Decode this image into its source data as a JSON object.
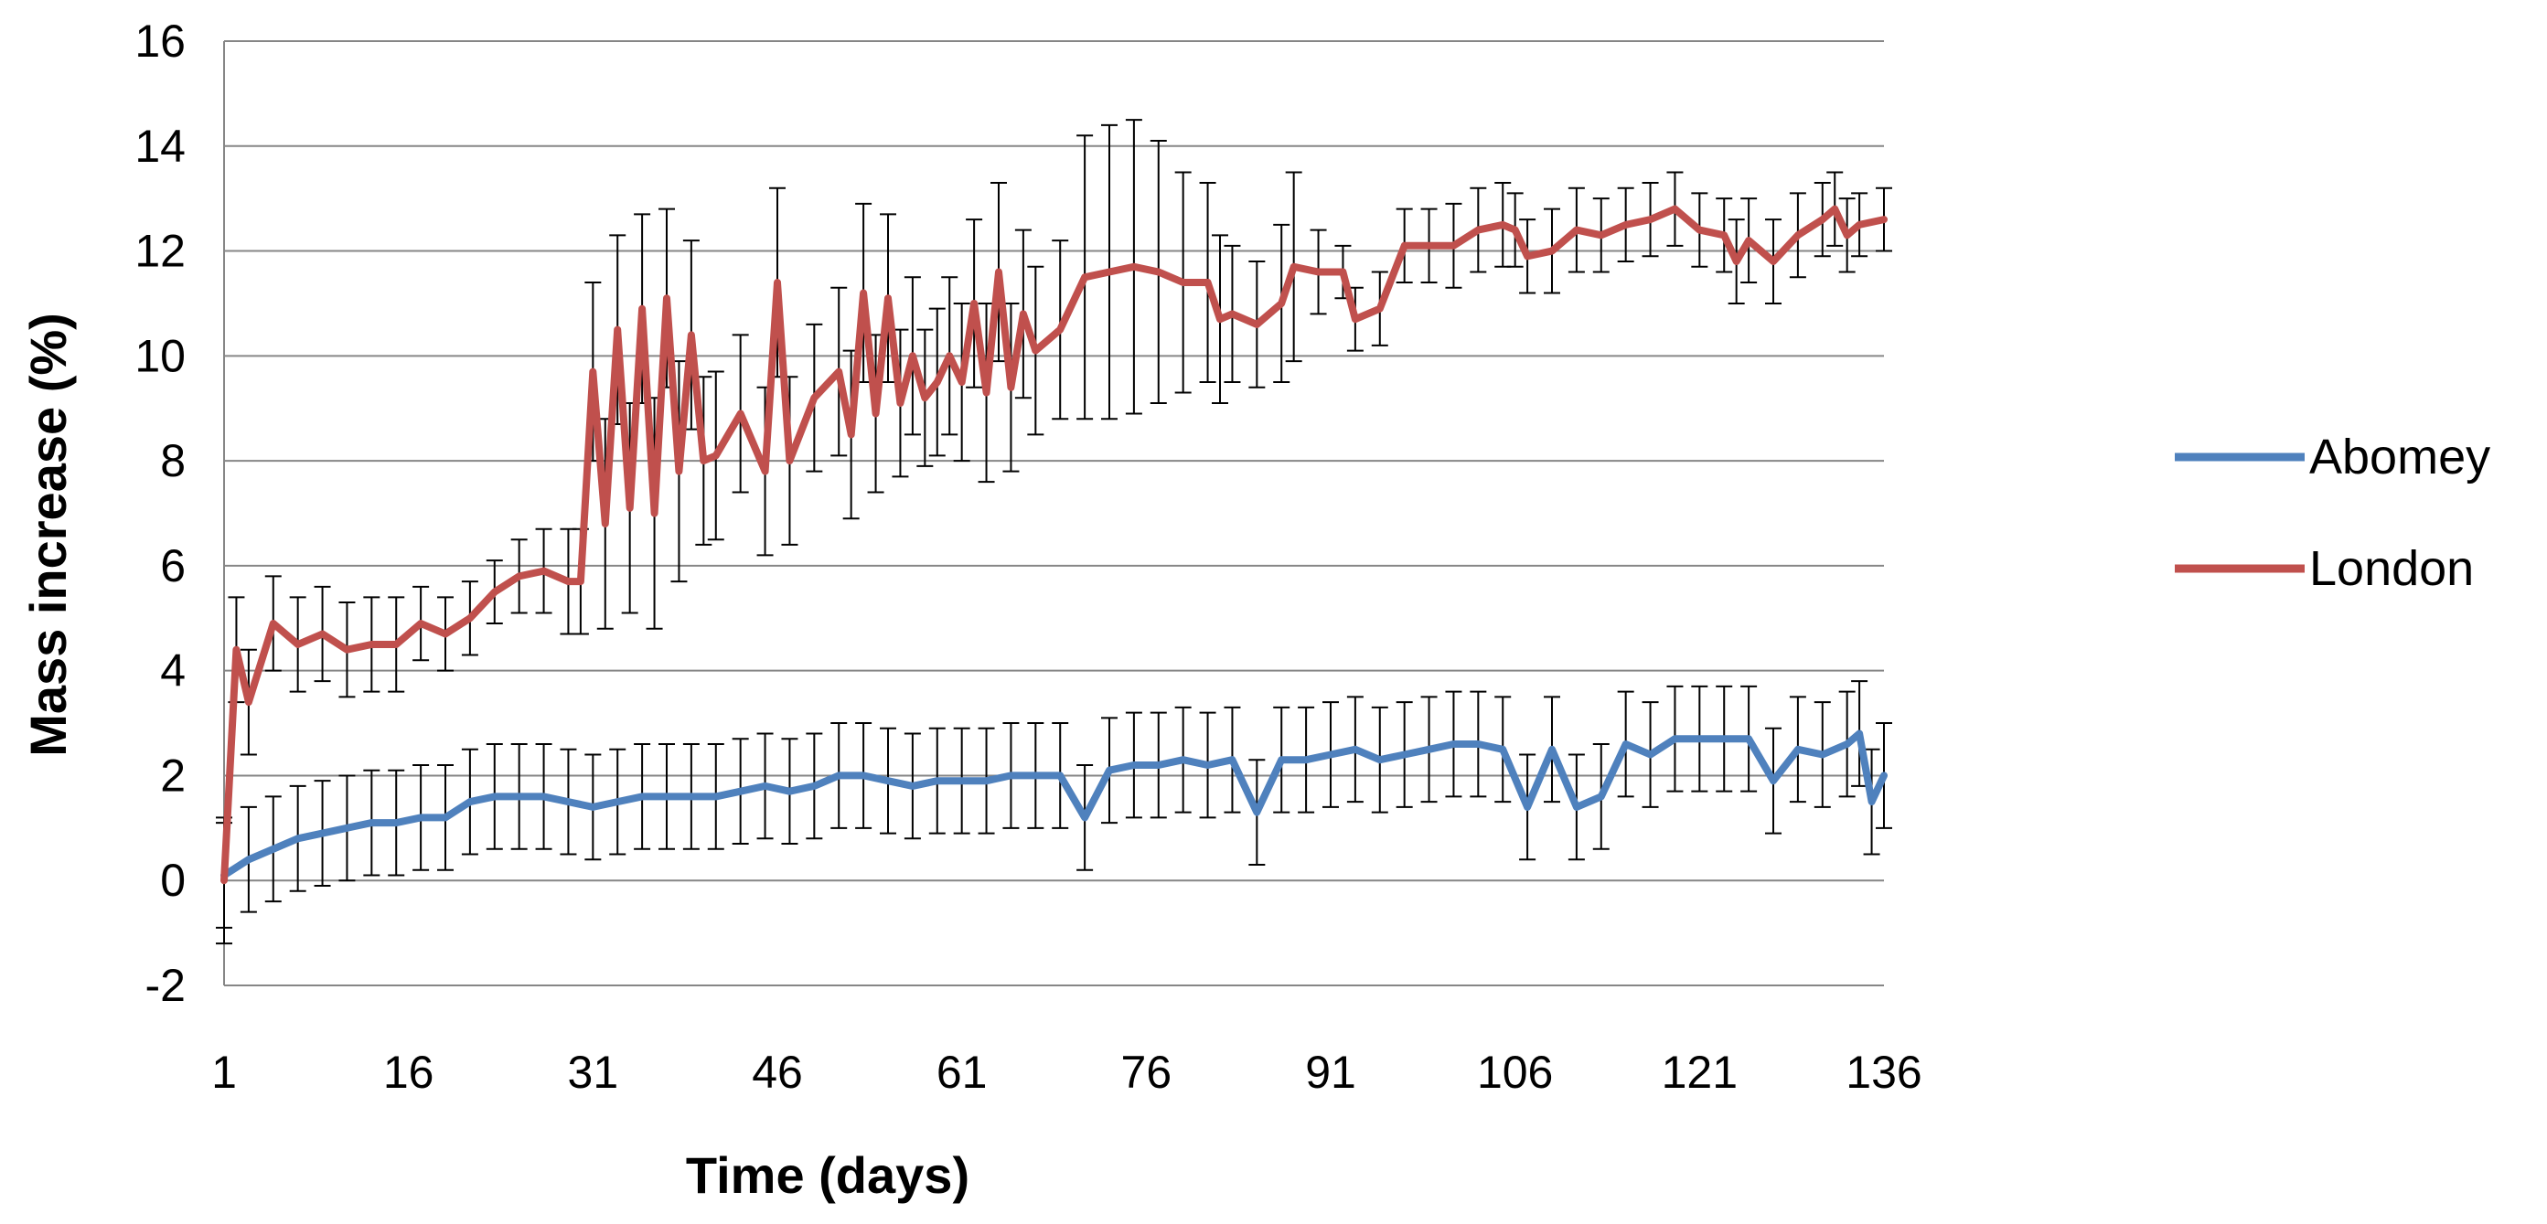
{
  "chart_data": {
    "type": "line",
    "title": "",
    "xlabel": "Time (days)",
    "ylabel": "Mass increase (%)",
    "xlim": [
      1,
      136
    ],
    "ylim": [
      -2,
      16
    ],
    "x_ticks": [
      1,
      16,
      31,
      46,
      61,
      76,
      91,
      106,
      121,
      136
    ],
    "y_ticks": [
      -2,
      0,
      2,
      4,
      6,
      8,
      10,
      12,
      14,
      16
    ],
    "x_tick_labels": [
      "1",
      "16",
      "31",
      "46",
      "61",
      "76",
      "91",
      "106",
      "121",
      "136"
    ],
    "y_tick_labels": [
      "-2",
      "0",
      "2",
      "4",
      "6",
      "8",
      "10",
      "12",
      "14",
      "16"
    ],
    "grid": true,
    "legend_position": "right",
    "series": [
      {
        "name": "Abomey",
        "color": "#4F81BD",
        "points": [
          [
            1,
            0.1,
            1.0
          ],
          [
            3,
            0.4,
            1.0
          ],
          [
            5,
            0.6,
            1.0
          ],
          [
            7,
            0.8,
            1.0
          ],
          [
            9,
            0.9,
            1.0
          ],
          [
            11,
            1.0,
            1.0
          ],
          [
            13,
            1.1,
            1.0
          ],
          [
            15,
            1.1,
            1.0
          ],
          [
            17,
            1.2,
            1.0
          ],
          [
            19,
            1.2,
            1.0
          ],
          [
            21,
            1.5,
            1.0
          ],
          [
            23,
            1.6,
            1.0
          ],
          [
            25,
            1.6,
            1.0
          ],
          [
            27,
            1.6,
            1.0
          ],
          [
            29,
            1.5,
            1.0
          ],
          [
            31,
            1.4,
            1.0
          ],
          [
            33,
            1.5,
            1.0
          ],
          [
            35,
            1.6,
            1.0
          ],
          [
            37,
            1.6,
            1.0
          ],
          [
            39,
            1.6,
            1.0
          ],
          [
            41,
            1.6,
            1.0
          ],
          [
            43,
            1.7,
            1.0
          ],
          [
            45,
            1.8,
            1.0
          ],
          [
            47,
            1.7,
            1.0
          ],
          [
            49,
            1.8,
            1.0
          ],
          [
            51,
            2.0,
            1.0
          ],
          [
            53,
            2.0,
            1.0
          ],
          [
            55,
            1.9,
            1.0
          ],
          [
            57,
            1.8,
            1.0
          ],
          [
            59,
            1.9,
            1.0
          ],
          [
            61,
            1.9,
            1.0
          ],
          [
            63,
            1.9,
            1.0
          ],
          [
            65,
            2.0,
            1.0
          ],
          [
            67,
            2.0,
            1.0
          ],
          [
            69,
            2.0,
            1.0
          ],
          [
            71,
            1.2,
            1.0
          ],
          [
            73,
            2.1,
            1.0
          ],
          [
            75,
            2.2,
            1.0
          ],
          [
            77,
            2.2,
            1.0
          ],
          [
            79,
            2.3,
            1.0
          ],
          [
            81,
            2.2,
            1.0
          ],
          [
            83,
            2.3,
            1.0
          ],
          [
            85,
            1.3,
            1.0
          ],
          [
            87,
            2.3,
            1.0
          ],
          [
            89,
            2.3,
            1.0
          ],
          [
            91,
            2.4,
            1.0
          ],
          [
            93,
            2.5,
            1.0
          ],
          [
            95,
            2.3,
            1.0
          ],
          [
            97,
            2.4,
            1.0
          ],
          [
            99,
            2.5,
            1.0
          ],
          [
            101,
            2.6,
            1.0
          ],
          [
            103,
            2.6,
            1.0
          ],
          [
            105,
            2.5,
            1.0
          ],
          [
            107,
            1.4,
            1.0
          ],
          [
            109,
            2.5,
            1.0
          ],
          [
            111,
            1.4,
            1.0
          ],
          [
            113,
            1.6,
            1.0
          ],
          [
            115,
            2.6,
            1.0
          ],
          [
            117,
            2.4,
            1.0
          ],
          [
            119,
            2.7,
            1.0
          ],
          [
            121,
            2.7,
            1.0
          ],
          [
            123,
            2.7,
            1.0
          ],
          [
            125,
            2.7,
            1.0
          ],
          [
            127,
            1.9,
            1.0
          ],
          [
            129,
            2.5,
            1.0
          ],
          [
            131,
            2.4,
            1.0
          ],
          [
            133,
            2.6,
            1.0
          ],
          [
            134,
            2.8,
            1.0
          ],
          [
            135,
            1.5,
            1.0
          ],
          [
            136,
            2.0,
            1.0
          ]
        ]
      },
      {
        "name": "London",
        "color": "#C0504D",
        "points": [
          [
            1,
            0.0,
            1.2
          ],
          [
            2,
            4.4,
            1.0
          ],
          [
            3,
            3.4,
            1.0
          ],
          [
            5,
            4.9,
            0.9
          ],
          [
            7,
            4.5,
            0.9
          ],
          [
            9,
            4.7,
            0.9
          ],
          [
            11,
            4.4,
            0.9
          ],
          [
            13,
            4.5,
            0.9
          ],
          [
            15,
            4.5,
            0.9
          ],
          [
            17,
            4.9,
            0.7
          ],
          [
            19,
            4.7,
            0.7
          ],
          [
            21,
            5.0,
            0.7
          ],
          [
            23,
            5.5,
            0.6
          ],
          [
            25,
            5.8,
            0.7
          ],
          [
            27,
            5.9,
            0.8
          ],
          [
            29,
            5.7,
            1.0
          ],
          [
            30,
            5.7,
            1.0
          ],
          [
            31,
            9.7,
            1.7
          ],
          [
            32,
            6.8,
            2.0
          ],
          [
            33,
            10.5,
            1.8
          ],
          [
            34,
            7.1,
            2.0
          ],
          [
            35,
            10.9,
            1.8
          ],
          [
            36,
            7.0,
            2.2
          ],
          [
            37,
            11.1,
            1.7
          ],
          [
            38,
            7.8,
            2.1
          ],
          [
            39,
            10.4,
            1.8
          ],
          [
            40,
            8.0,
            1.6
          ],
          [
            41,
            8.1,
            1.6
          ],
          [
            43,
            8.9,
            1.5
          ],
          [
            45,
            7.8,
            1.6
          ],
          [
            46,
            11.4,
            1.8
          ],
          [
            47,
            8.0,
            1.6
          ],
          [
            49,
            9.2,
            1.4
          ],
          [
            51,
            9.7,
            1.6
          ],
          [
            52,
            8.5,
            1.6
          ],
          [
            53,
            11.2,
            1.7
          ],
          [
            54,
            8.9,
            1.5
          ],
          [
            55,
            11.1,
            1.6
          ],
          [
            56,
            9.1,
            1.4
          ],
          [
            57,
            10.0,
            1.5
          ],
          [
            58,
            9.2,
            1.3
          ],
          [
            59,
            9.5,
            1.4
          ],
          [
            60,
            10.0,
            1.5
          ],
          [
            61,
            9.5,
            1.5
          ],
          [
            62,
            11.0,
            1.6
          ],
          [
            63,
            9.3,
            1.7
          ],
          [
            64,
            11.6,
            1.7
          ],
          [
            65,
            9.4,
            1.6
          ],
          [
            66,
            10.8,
            1.6
          ],
          [
            67,
            10.1,
            1.6
          ],
          [
            69,
            10.5,
            1.7
          ],
          [
            71,
            11.5,
            2.7
          ],
          [
            73,
            11.6,
            2.8
          ],
          [
            75,
            11.7,
            2.8
          ],
          [
            77,
            11.6,
            2.5
          ],
          [
            79,
            11.4,
            2.1
          ],
          [
            81,
            11.4,
            1.9
          ],
          [
            82,
            10.7,
            1.6
          ],
          [
            83,
            10.8,
            1.3
          ],
          [
            85,
            10.6,
            1.2
          ],
          [
            87,
            11.0,
            1.5
          ],
          [
            88,
            11.7,
            1.8
          ],
          [
            90,
            11.6,
            0.8
          ],
          [
            92,
            11.6,
            0.5
          ],
          [
            93,
            10.7,
            0.6
          ],
          [
            95,
            10.9,
            0.7
          ],
          [
            97,
            12.1,
            0.7
          ],
          [
            99,
            12.1,
            0.7
          ],
          [
            101,
            12.1,
            0.8
          ],
          [
            103,
            12.4,
            0.8
          ],
          [
            105,
            12.5,
            0.8
          ],
          [
            106,
            12.4,
            0.7
          ],
          [
            107,
            11.9,
            0.7
          ],
          [
            109,
            12.0,
            0.8
          ],
          [
            111,
            12.4,
            0.8
          ],
          [
            113,
            12.3,
            0.7
          ],
          [
            115,
            12.5,
            0.7
          ],
          [
            117,
            12.6,
            0.7
          ],
          [
            119,
            12.8,
            0.7
          ],
          [
            121,
            12.4,
            0.7
          ],
          [
            123,
            12.3,
            0.7
          ],
          [
            124,
            11.8,
            0.8
          ],
          [
            125,
            12.2,
            0.8
          ],
          [
            127,
            11.8,
            0.8
          ],
          [
            129,
            12.3,
            0.8
          ],
          [
            131,
            12.6,
            0.7
          ],
          [
            132,
            12.8,
            0.7
          ],
          [
            133,
            12.3,
            0.7
          ],
          [
            134,
            12.5,
            0.6
          ],
          [
            136,
            12.6,
            0.6
          ]
        ]
      }
    ],
    "point_format": [
      "day",
      "mass_increase_percent",
      "error_bar"
    ]
  }
}
